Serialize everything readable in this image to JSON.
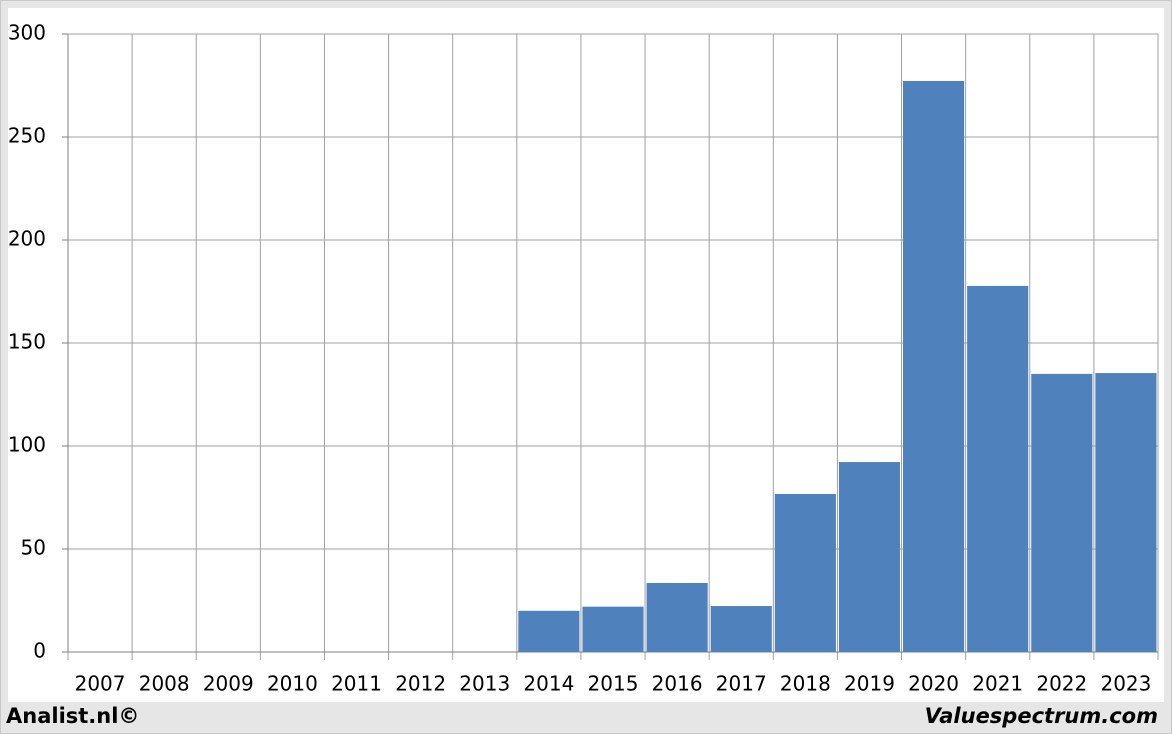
{
  "chart_data": {
    "type": "bar",
    "categories": [
      "2007",
      "2008",
      "2009",
      "2010",
      "2011",
      "2012",
      "2013",
      "2014",
      "2015",
      "2016",
      "2017",
      "2018",
      "2019",
      "2020",
      "2021",
      "2022",
      "2023"
    ],
    "values": [
      null,
      null,
      null,
      null,
      null,
      null,
      null,
      20,
      22,
      33.5,
      22.3,
      76.7,
      92.2,
      277.2,
      177.7,
      135,
      135.4
    ],
    "color": "#4f81bd",
    "ylim": [
      0,
      300
    ],
    "yticks": [
      0,
      50,
      100,
      150,
      200,
      250,
      300
    ],
    "grid": true,
    "credits": [
      "Analist.nl©",
      "Valuespectrum.com"
    ]
  }
}
